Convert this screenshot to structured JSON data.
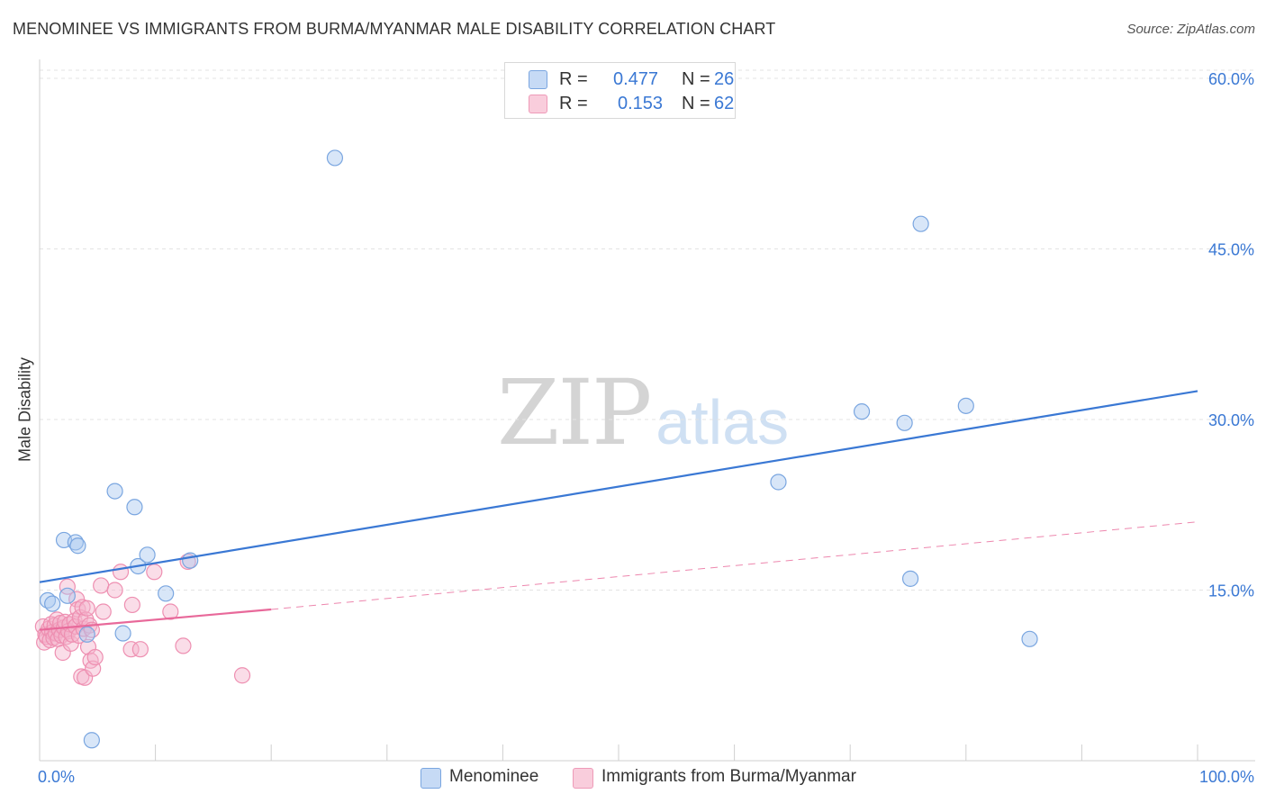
{
  "title": "MENOMINEE VS IMMIGRANTS FROM BURMA/MYANMAR MALE DISABILITY CORRELATION CHART",
  "source": "Source: ZipAtlas.com",
  "watermark": {
    "zip": "ZIP",
    "atlas": "atlas"
  },
  "colors": {
    "blue": "#3a78d4",
    "blue_fill": "#a9c8f0",
    "pink": "#e8699a",
    "pink_fill": "#f4b4cb",
    "grid": "#e2e2e2",
    "tick_label": "#3a78d4"
  },
  "legend_top": [
    {
      "r_label": "R =",
      "r_value": "0.477",
      "n_label": "N =",
      "n_value": "26",
      "color": "#a9c8f0"
    },
    {
      "r_label": "R =",
      "r_value": "0.153",
      "n_label": "N =",
      "n_value": "62",
      "color": "#f4b4cb"
    }
  ],
  "chart_data": {
    "type": "scatter",
    "title": "MENOMINEE VS IMMIGRANTS FROM BURMA/MYANMAR MALE DISABILITY CORRELATION CHART",
    "xlabel": "",
    "ylabel": "Male Disability",
    "xlim": [
      0,
      100
    ],
    "ylim": [
      0,
      63
    ],
    "x_tick_labels": [
      "0.0%",
      "100.0%"
    ],
    "y_ticks": [
      15,
      30,
      45,
      60
    ],
    "y_tick_labels": [
      "15.0%",
      "30.0%",
      "45.0%",
      "60.0%"
    ],
    "grid": true,
    "legend_position": "top-center",
    "series": [
      {
        "name": "Menominee",
        "color": "#3a78d4",
        "r": 0.477,
        "n": 26,
        "trend": {
          "x": [
            0,
            100
          ],
          "y": [
            15.7,
            32.5
          ],
          "style": "solid"
        },
        "points": [
          {
            "x": 0.7,
            "y": 14.1
          },
          {
            "x": 1.1,
            "y": 13.8
          },
          {
            "x": 2.1,
            "y": 19.4
          },
          {
            "x": 2.4,
            "y": 14.5
          },
          {
            "x": 3.1,
            "y": 19.2
          },
          {
            "x": 3.3,
            "y": 18.9
          },
          {
            "x": 4.1,
            "y": 11.1
          },
          {
            "x": 4.5,
            "y": 1.8
          },
          {
            "x": 6.5,
            "y": 23.7
          },
          {
            "x": 7.2,
            "y": 11.2
          },
          {
            "x": 8.2,
            "y": 22.3
          },
          {
            "x": 8.5,
            "y": 17.1
          },
          {
            "x": 9.3,
            "y": 18.1
          },
          {
            "x": 10.9,
            "y": 14.7
          },
          {
            "x": 13.0,
            "y": 17.6
          },
          {
            "x": 25.5,
            "y": 53.0
          },
          {
            "x": 63.8,
            "y": 24.5
          },
          {
            "x": 71.0,
            "y": 30.7
          },
          {
            "x": 74.7,
            "y": 29.7
          },
          {
            "x": 75.2,
            "y": 16.0
          },
          {
            "x": 76.1,
            "y": 47.2
          },
          {
            "x": 80.0,
            "y": 31.2
          },
          {
            "x": 85.5,
            "y": 10.7
          }
        ]
      },
      {
        "name": "Immigrants from Burma/Myanmar",
        "color": "#e8699a",
        "r": 0.153,
        "n": 62,
        "trend": {
          "x": [
            0,
            20
          ],
          "y": [
            11.5,
            13.3
          ],
          "style": "solid",
          "extended": {
            "x": [
              20,
              100
            ],
            "y": [
              13.3,
              21.0
            ],
            "style": "dashed"
          }
        },
        "points": [
          {
            "x": 0.3,
            "y": 11.8
          },
          {
            "x": 0.4,
            "y": 10.4
          },
          {
            "x": 0.5,
            "y": 11.1
          },
          {
            "x": 0.6,
            "y": 10.9
          },
          {
            "x": 0.8,
            "y": 11.6
          },
          {
            "x": 0.9,
            "y": 10.6
          },
          {
            "x": 1.0,
            "y": 12.0
          },
          {
            "x": 1.1,
            "y": 11.3
          },
          {
            "x": 1.2,
            "y": 10.8
          },
          {
            "x": 1.3,
            "y": 11.9
          },
          {
            "x": 1.4,
            "y": 11.2
          },
          {
            "x": 1.5,
            "y": 12.4
          },
          {
            "x": 1.6,
            "y": 10.7
          },
          {
            "x": 1.7,
            "y": 11.5
          },
          {
            "x": 1.8,
            "y": 12.1
          },
          {
            "x": 1.9,
            "y": 11.0
          },
          {
            "x": 2.0,
            "y": 9.5
          },
          {
            "x": 2.1,
            "y": 11.7
          },
          {
            "x": 2.2,
            "y": 12.2
          },
          {
            "x": 2.3,
            "y": 10.9
          },
          {
            "x": 2.4,
            "y": 15.3
          },
          {
            "x": 2.5,
            "y": 11.4
          },
          {
            "x": 2.6,
            "y": 12.0
          },
          {
            "x": 2.7,
            "y": 10.3
          },
          {
            "x": 2.8,
            "y": 11.1
          },
          {
            "x": 3.0,
            "y": 12.3
          },
          {
            "x": 3.1,
            "y": 11.8
          },
          {
            "x": 3.2,
            "y": 14.2
          },
          {
            "x": 3.3,
            "y": 13.3
          },
          {
            "x": 3.4,
            "y": 11.0
          },
          {
            "x": 3.5,
            "y": 12.6
          },
          {
            "x": 3.6,
            "y": 7.4
          },
          {
            "x": 3.7,
            "y": 13.5
          },
          {
            "x": 3.8,
            "y": 11.6
          },
          {
            "x": 3.9,
            "y": 7.3
          },
          {
            "x": 4.0,
            "y": 12.4
          },
          {
            "x": 4.1,
            "y": 13.4
          },
          {
            "x": 4.2,
            "y": 10.0
          },
          {
            "x": 4.3,
            "y": 11.9
          },
          {
            "x": 4.4,
            "y": 8.8
          },
          {
            "x": 4.5,
            "y": 11.5
          },
          {
            "x": 4.6,
            "y": 8.1
          },
          {
            "x": 4.8,
            "y": 9.1
          },
          {
            "x": 5.3,
            "y": 15.4
          },
          {
            "x": 5.5,
            "y": 13.1
          },
          {
            "x": 6.5,
            "y": 15.0
          },
          {
            "x": 7.0,
            "y": 16.6
          },
          {
            "x": 7.9,
            "y": 9.8
          },
          {
            "x": 8.0,
            "y": 13.7
          },
          {
            "x": 8.7,
            "y": 9.8
          },
          {
            "x": 9.9,
            "y": 16.6
          },
          {
            "x": 11.3,
            "y": 13.1
          },
          {
            "x": 12.4,
            "y": 10.1
          },
          {
            "x": 12.8,
            "y": 17.5
          },
          {
            "x": 17.5,
            "y": 7.5
          }
        ]
      }
    ]
  }
}
